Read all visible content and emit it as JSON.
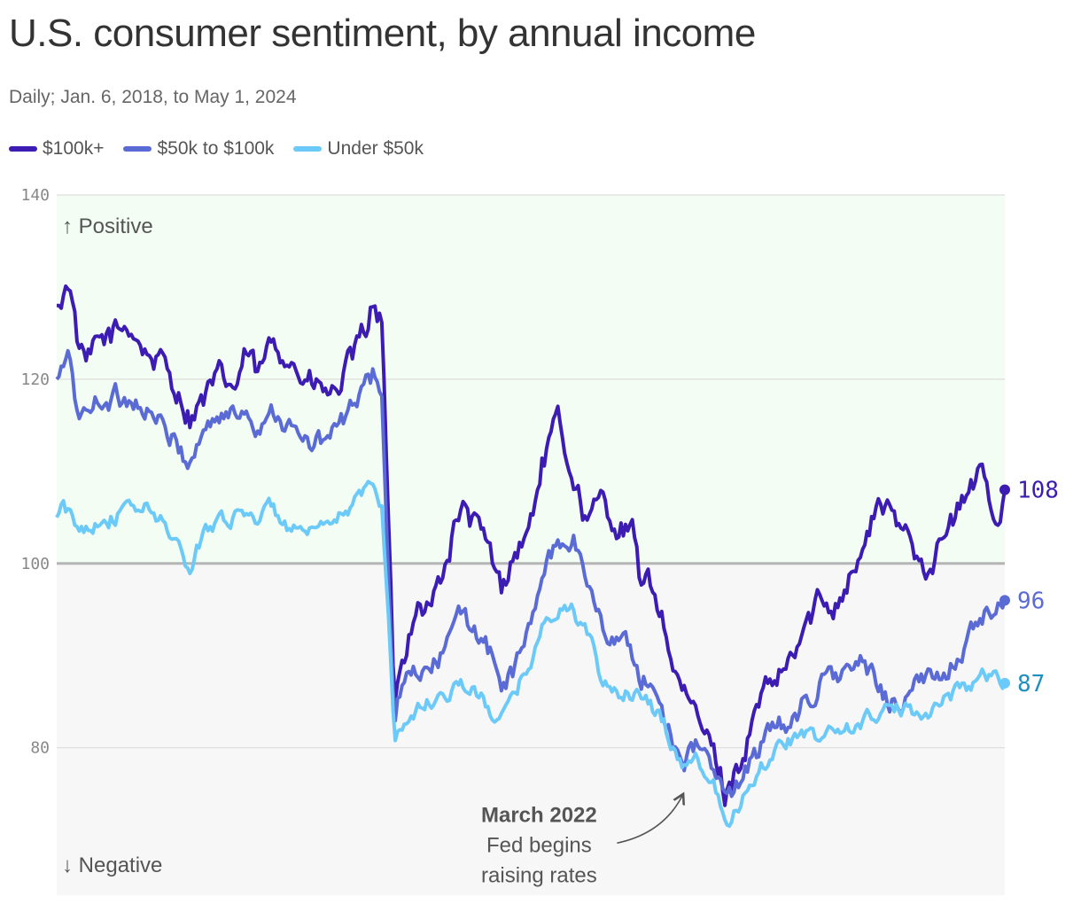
{
  "chart_data": {
    "type": "line",
    "title": "U.S. consumer sentiment, by annual income",
    "subtitle": "Daily; Jan. 6, 2018, to May 1, 2024",
    "ylim": [
      64,
      140
    ],
    "xlim": [
      2018.01,
      2024.33
    ],
    "y_ticks": [
      {
        "value": 140,
        "label": "140"
      },
      {
        "value": 120,
        "label": "120"
      },
      {
        "value": 100,
        "label": "100"
      },
      {
        "value": 80,
        "label": "80"
      }
    ],
    "baseline": 100,
    "zone_labels": {
      "positive": "↑ Positive",
      "negative": "↓ Negative"
    },
    "annotation": {
      "x": 2022.2,
      "y": 76,
      "lines": [
        "March 2022",
        "Fed begins",
        "raising rates"
      ]
    },
    "series": [
      {
        "name": "$100k+",
        "color": "#3d1cb4",
        "end_label": "108",
        "x": [
          2018.01,
          2018.05,
          2018.1,
          2018.14,
          2018.2,
          2018.3,
          2018.4,
          2018.5,
          2018.6,
          2018.75,
          2018.9,
          2019.0,
          2019.1,
          2019.2,
          2019.28,
          2019.35,
          2019.45,
          2019.55,
          2019.65,
          2019.75,
          2019.85,
          2019.95,
          2020.02,
          2020.08,
          2020.13,
          2020.18,
          2020.22,
          2020.26,
          2020.3,
          2020.4,
          2020.5,
          2020.6,
          2020.7,
          2020.8,
          2020.9,
          2020.97,
          2021.05,
          2021.15,
          2021.25,
          2021.35,
          2021.45,
          2021.55,
          2021.65,
          2021.75,
          2021.85,
          2021.9,
          2022.0,
          2022.05,
          2022.12,
          2022.2,
          2022.28,
          2022.35,
          2022.42,
          2022.47,
          2022.52,
          2022.6,
          2022.7,
          2022.8,
          2022.9,
          2023.0,
          2023.1,
          2023.2,
          2023.3,
          2023.4,
          2023.5,
          2023.6,
          2023.7,
          2023.8,
          2023.9,
          2024.0,
          2024.1,
          2024.2,
          2024.25,
          2024.33
        ],
        "y": [
          128,
          129,
          131,
          125,
          121,
          124,
          125,
          126,
          123,
          121,
          116,
          118,
          120,
          119,
          123,
          120,
          124,
          123,
          120,
          119,
          118,
          121,
          123,
          126,
          129,
          126,
          104,
          85,
          88,
          96,
          95,
          100,
          106,
          104,
          101,
          97,
          101,
          103,
          111,
          115,
          110,
          104,
          107,
          104,
          103,
          98,
          97,
          94,
          89,
          85,
          83,
          81,
          78,
          75,
          77,
          80,
          85,
          87,
          89,
          93,
          96,
          96,
          99,
          102,
          107,
          104,
          103,
          100,
          102,
          105,
          108,
          110,
          104,
          108
        ],
        "noise": 1.2
      },
      {
        "name": "$50k to $100k",
        "color": "#5b6bd6",
        "end_label": "96",
        "x": [
          2018.01,
          2018.05,
          2018.1,
          2018.14,
          2018.2,
          2018.3,
          2018.4,
          2018.5,
          2018.6,
          2018.75,
          2018.9,
          2019.0,
          2019.1,
          2019.2,
          2019.28,
          2019.35,
          2019.45,
          2019.55,
          2019.65,
          2019.75,
          2019.85,
          2019.95,
          2020.02,
          2020.08,
          2020.13,
          2020.18,
          2020.22,
          2020.26,
          2020.3,
          2020.4,
          2020.5,
          2020.6,
          2020.7,
          2020.8,
          2020.9,
          2020.97,
          2021.05,
          2021.15,
          2021.25,
          2021.35,
          2021.45,
          2021.55,
          2021.65,
          2021.75,
          2021.85,
          2021.9,
          2022.0,
          2022.05,
          2022.12,
          2022.2,
          2022.28,
          2022.35,
          2022.42,
          2022.47,
          2022.52,
          2022.6,
          2022.7,
          2022.8,
          2022.9,
          2023.0,
          2023.1,
          2023.2,
          2023.3,
          2023.4,
          2023.5,
          2023.6,
          2023.7,
          2023.8,
          2023.9,
          2024.0,
          2024.1,
          2024.2,
          2024.25,
          2024.33
        ],
        "y": [
          120,
          121,
          122,
          117,
          116,
          118,
          118,
          118,
          117,
          114,
          111,
          115,
          116,
          116,
          117,
          115,
          117,
          115,
          113,
          113,
          114,
          116,
          118,
          119,
          121,
          118,
          98,
          83,
          86,
          88,
          88,
          91,
          94,
          93,
          90,
          87,
          88,
          92,
          99,
          102,
          103,
          98,
          93,
          92,
          90,
          88,
          86,
          84,
          81,
          79,
          80,
          79,
          76,
          74,
          75,
          78,
          80,
          82,
          83,
          85,
          87,
          88,
          88,
          89,
          86,
          85,
          86,
          87,
          88,
          90,
          92,
          94,
          93,
          96
        ],
        "noise": 1.0
      },
      {
        "name": "Under $50k",
        "color": "#6ccaf8",
        "end_label": "87",
        "x": [
          2018.01,
          2018.05,
          2018.1,
          2018.14,
          2018.2,
          2018.3,
          2018.4,
          2018.5,
          2018.6,
          2018.75,
          2018.9,
          2019.0,
          2019.1,
          2019.2,
          2019.28,
          2019.35,
          2019.45,
          2019.55,
          2019.65,
          2019.75,
          2019.85,
          2019.95,
          2020.02,
          2020.08,
          2020.13,
          2020.18,
          2020.22,
          2020.26,
          2020.3,
          2020.4,
          2020.5,
          2020.6,
          2020.7,
          2020.8,
          2020.9,
          2020.97,
          2021.05,
          2021.15,
          2021.25,
          2021.35,
          2021.45,
          2021.55,
          2021.65,
          2021.75,
          2021.85,
          2021.9,
          2022.0,
          2022.05,
          2022.12,
          2022.2,
          2022.28,
          2022.35,
          2022.42,
          2022.47,
          2022.52,
          2022.6,
          2022.7,
          2022.8,
          2022.9,
          2023.0,
          2023.1,
          2023.2,
          2023.3,
          2023.4,
          2023.5,
          2023.6,
          2023.7,
          2023.8,
          2023.9,
          2024.0,
          2024.1,
          2024.2,
          2024.25,
          2024.33
        ],
        "y": [
          105,
          106,
          105,
          104,
          104,
          105,
          105,
          106,
          106,
          104,
          99,
          104,
          105,
          105,
          106,
          105,
          106,
          104,
          103,
          103,
          104,
          106,
          107,
          108,
          109,
          106,
          95,
          81,
          82,
          84,
          85,
          86,
          87,
          86,
          84,
          83,
          85,
          89,
          93,
          95,
          95,
          92,
          87,
          86,
          86,
          85,
          84,
          83,
          80,
          78,
          79,
          77,
          75,
          73,
          73,
          75,
          78,
          80,
          81,
          81,
          81,
          82,
          82,
          83,
          84,
          84,
          84,
          84,
          85,
          86,
          87,
          88,
          88,
          87
        ],
        "noise": 0.7
      }
    ]
  }
}
